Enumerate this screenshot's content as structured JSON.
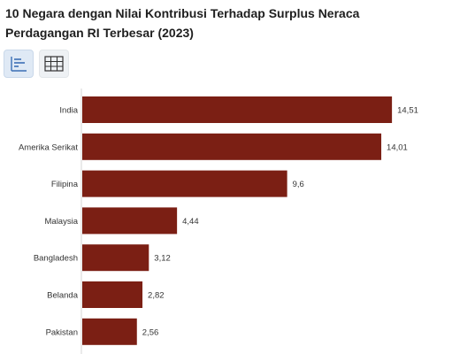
{
  "header": {
    "title": "10 Negara dengan Nilai Kontribusi Terhadap Surplus Neraca Perdagangan RI Terbesar (2023)"
  },
  "toolbar": {
    "buttons": [
      {
        "icon": "bar-chart-icon",
        "active": true
      },
      {
        "icon": "table-grid-icon",
        "active": false
      }
    ]
  },
  "chart_data": {
    "type": "bar",
    "orientation": "horizontal",
    "categories": [
      "India",
      "Amerika Serikat",
      "Filipina",
      "Malaysia",
      "Bangladesh",
      "Belanda",
      "Pakistan"
    ],
    "values": [
      14.51,
      14.01,
      9.6,
      4.44,
      3.12,
      2.82,
      2.56
    ],
    "value_labels": [
      "14,51",
      "14,01",
      "9,6",
      "4,44",
      "3,12",
      "2,82",
      "2,56"
    ],
    "xlim": [
      0,
      15.5
    ],
    "bar_color": "#7b1f14",
    "grid": false
  }
}
